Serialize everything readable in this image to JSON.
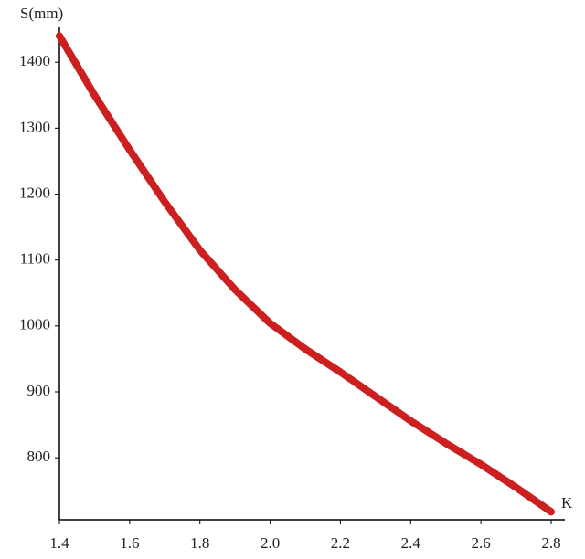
{
  "chart_data": {
    "type": "line",
    "y_label": "S(mm)",
    "x_label": "K",
    "x": [
      1.4,
      1.5,
      1.6,
      1.7,
      1.8,
      1.9,
      2.0,
      2.1,
      2.2,
      2.3,
      2.4,
      2.5,
      2.6,
      2.7,
      2.8
    ],
    "series": [
      {
        "color": "#cc2020",
        "values": [
          1440,
          1350,
          1267,
          1188,
          1115,
          1055,
          1004,
          965,
          930,
          893,
          856,
          822,
          790,
          755,
          718
        ]
      }
    ],
    "xlim": [
      1.4,
      2.8
    ],
    "xticks": [
      1.4,
      1.6,
      1.8,
      {
        "value": 2,
        "label": "2.0"
      },
      2.2,
      2.4,
      2.6,
      2.8
    ],
    "ylim": [
      706,
      1446
    ],
    "yticks": [
      800,
      900,
      1000,
      1100,
      1200,
      1300,
      1400
    ]
  }
}
